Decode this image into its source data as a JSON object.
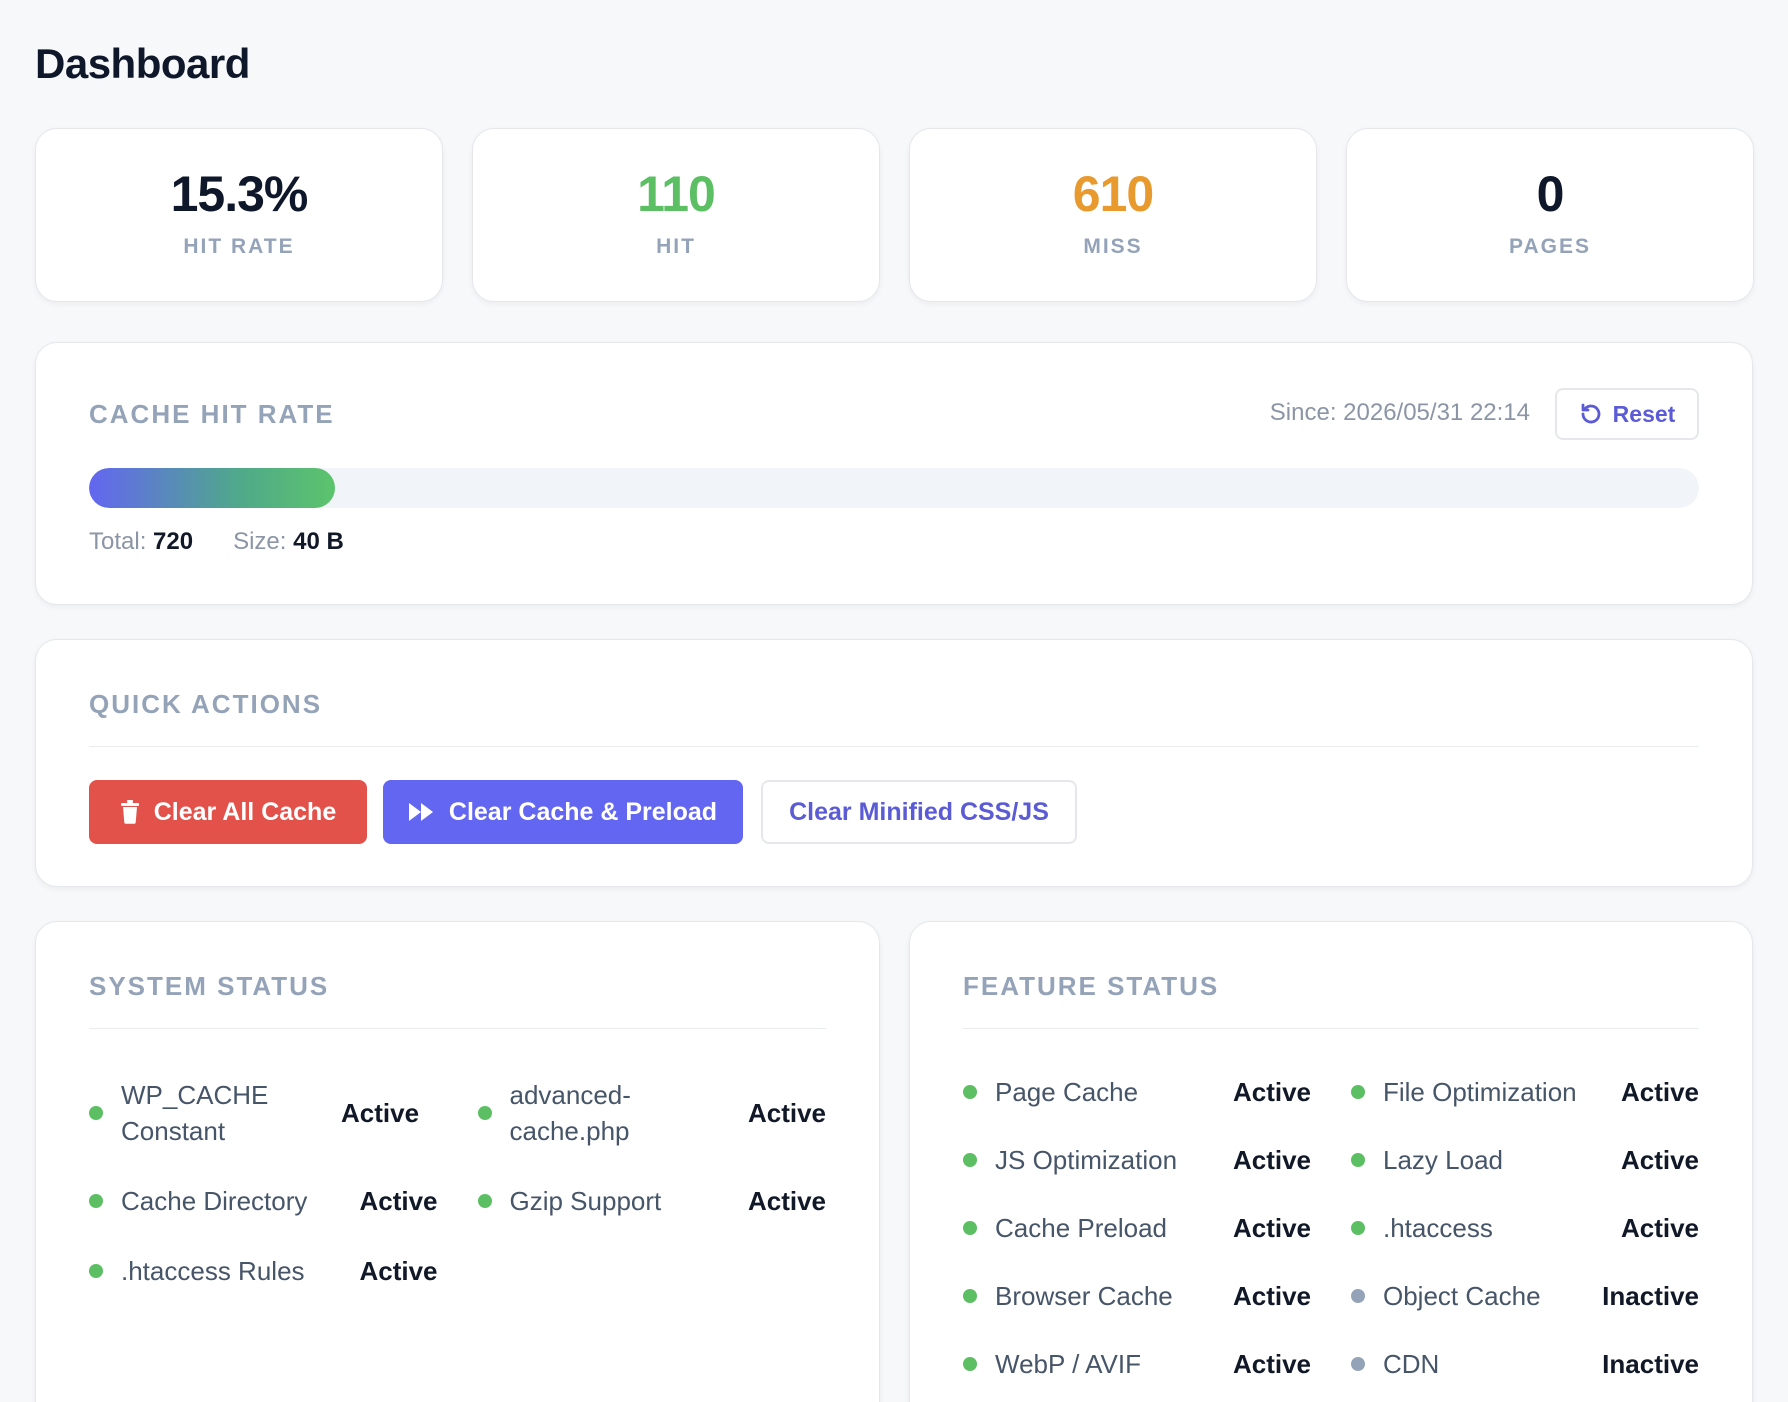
{
  "page": {
    "title": "Dashboard"
  },
  "colors": {
    "hit": "#5cbf63",
    "miss": "#e89a2e",
    "default": "#0f172a",
    "active_dot": "#5cbf63",
    "inactive_dot": "#94a3b8"
  },
  "stats": [
    {
      "value": "15.3%",
      "label": "HIT RATE",
      "color": "#0f172a"
    },
    {
      "value": "110",
      "label": "HIT",
      "color": "#5cbf63"
    },
    {
      "value": "610",
      "label": "MISS",
      "color": "#e89a2e"
    },
    {
      "value": "0",
      "label": "PAGES",
      "color": "#0f172a"
    }
  ],
  "cache_hit_rate": {
    "title": "CACHE HIT RATE",
    "since": "Since: 2026/05/31 22:14",
    "reset_label": "Reset",
    "reset_icon": "refresh-icon",
    "progress_percent": 15.3,
    "total_label": "Total:",
    "total_value": "720",
    "size_label": "Size:",
    "size_value": "40 B"
  },
  "quick_actions": {
    "title": "QUICK ACTIONS",
    "clear_all_label": "Clear All Cache",
    "clear_all_icon": "trash-icon",
    "clear_preload_label": "Clear Cache & Preload",
    "clear_preload_icon": "fast-forward-icon",
    "clear_minified_label": "Clear Minified CSS/JS"
  },
  "system_status": {
    "title": "SYSTEM STATUS",
    "items": [
      {
        "name": "WP_CACHE Constant",
        "value": "Active",
        "active": true
      },
      {
        "name": "advanced-cache.php",
        "value": "Active",
        "active": true
      },
      {
        "name": "Cache Directory",
        "value": "Active",
        "active": true
      },
      {
        "name": "Gzip Support",
        "value": "Active",
        "active": true
      },
      {
        "name": ".htaccess Rules",
        "value": "Active",
        "active": true
      }
    ]
  },
  "feature_status": {
    "title": "FEATURE STATUS",
    "items": [
      {
        "name": "Page Cache",
        "value": "Active",
        "active": true
      },
      {
        "name": "File Optimization",
        "value": "Active",
        "active": true
      },
      {
        "name": "JS Optimization",
        "value": "Active",
        "active": true
      },
      {
        "name": "Lazy Load",
        "value": "Active",
        "active": true
      },
      {
        "name": "Cache Preload",
        "value": "Active",
        "active": true
      },
      {
        "name": ".htaccess",
        "value": "Active",
        "active": true
      },
      {
        "name": "Browser Cache",
        "value": "Active",
        "active": true
      },
      {
        "name": "Object Cache",
        "value": "Inactive",
        "active": false
      },
      {
        "name": "WebP / AVIF",
        "value": "Active",
        "active": true
      },
      {
        "name": "CDN",
        "value": "Inactive",
        "active": false
      }
    ]
  }
}
